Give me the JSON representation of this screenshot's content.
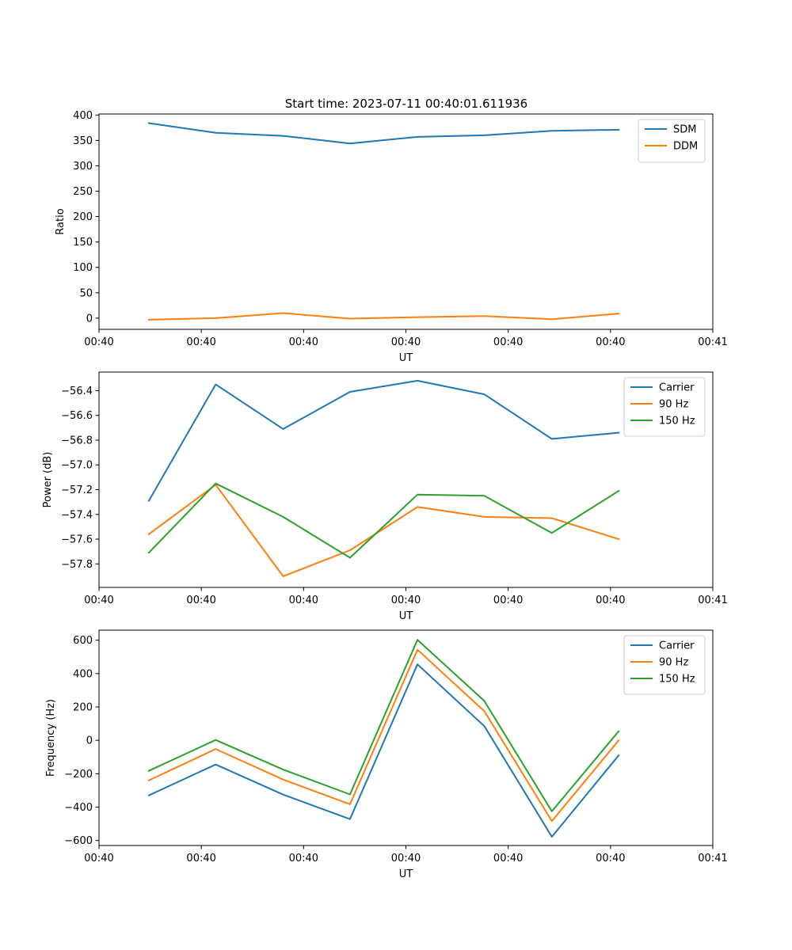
{
  "figure_title": "Start time: 2023-07-11 00:40:01.611936",
  "chart_data": [
    {
      "type": "line",
      "title": "Start time: 2023-07-11 00:40:01.611936",
      "xlabel": "UT",
      "ylabel": "Ratio",
      "xlim": [
        0,
        9
      ],
      "ylim": [
        -22,
        402
      ],
      "x_ticks": [
        0,
        1.5,
        3,
        4.5,
        6,
        7.5,
        9
      ],
      "x_tick_labels": [
        "00:40",
        "00:40",
        "00:40",
        "00:40",
        "00:40",
        "00:40",
        "00:41"
      ],
      "y_ticks": [
        0,
        50,
        100,
        150,
        200,
        250,
        300,
        350,
        400
      ],
      "y_tick_labels": [
        "0",
        "50",
        "100",
        "150",
        "200",
        "250",
        "300",
        "350",
        "400"
      ],
      "legend_position": "top-right",
      "x": [
        0.73,
        1.71,
        2.7,
        3.68,
        4.67,
        5.65,
        6.64,
        7.62
      ],
      "series": [
        {
          "name": "SDM",
          "color": "#1f77b4",
          "values": [
            384,
            365,
            359,
            344,
            357,
            360,
            369,
            371
          ]
        },
        {
          "name": "DDM",
          "color": "#ff7f0e",
          "values": [
            -3,
            0,
            10,
            -1,
            2,
            4,
            -2,
            9
          ]
        }
      ]
    },
    {
      "type": "line",
      "title": "",
      "xlabel": "UT",
      "ylabel": "Power (dB)",
      "xlim": [
        0,
        9
      ],
      "ylim": [
        -57.99,
        -56.25
      ],
      "x_ticks": [
        0,
        1.5,
        3,
        4.5,
        6,
        7.5,
        9
      ],
      "x_tick_labels": [
        "00:40",
        "00:40",
        "00:40",
        "00:40",
        "00:40",
        "00:40",
        "00:41"
      ],
      "y_ticks": [
        -57.8,
        -57.6,
        -57.4,
        -57.2,
        -57.0,
        -56.8,
        -56.6,
        -56.4
      ],
      "y_tick_labels": [
        "−57.8",
        "−57.6",
        "−57.4",
        "−57.2",
        "−57.0",
        "−56.8",
        "−56.6",
        "−56.4"
      ],
      "legend_position": "top-right",
      "x": [
        0.73,
        1.71,
        2.7,
        3.68,
        4.67,
        5.65,
        6.64,
        7.62
      ],
      "series": [
        {
          "name": "Carrier",
          "color": "#1f77b4",
          "values": [
            -57.29,
            -56.35,
            -56.71,
            -56.41,
            -56.32,
            -56.43,
            -56.79,
            -56.74
          ]
        },
        {
          "name": "90 Hz",
          "color": "#ff7f0e",
          "values": [
            -57.56,
            -57.16,
            -57.9,
            -57.69,
            -57.34,
            -57.42,
            -57.43,
            -57.6
          ]
        },
        {
          "name": "150 Hz",
          "color": "#2ca02c",
          "values": [
            -57.71,
            -57.15,
            -57.42,
            -57.75,
            -57.24,
            -57.25,
            -57.55,
            -57.21
          ]
        }
      ]
    },
    {
      "type": "line",
      "title": "",
      "xlabel": "UT",
      "ylabel": "Frequency (Hz)",
      "xlim": [
        0,
        9
      ],
      "ylim": [
        -630,
        660
      ],
      "x_ticks": [
        0,
        1.5,
        3,
        4.5,
        6,
        7.5,
        9
      ],
      "x_tick_labels": [
        "00:40",
        "00:40",
        "00:40",
        "00:40",
        "00:40",
        "00:40",
        "00:41"
      ],
      "y_ticks": [
        -600,
        -400,
        -200,
        0,
        200,
        400,
        600
      ],
      "y_tick_labels": [
        "−600",
        "−400",
        "−200",
        "0",
        "200",
        "400",
        "600"
      ],
      "legend_position": "top-right",
      "x": [
        0.73,
        1.71,
        2.7,
        3.68,
        4.67,
        5.65,
        6.64,
        7.62
      ],
      "series": [
        {
          "name": "Carrier",
          "color": "#1f77b4",
          "values": [
            -330,
            -145,
            -325,
            -472,
            455,
            85,
            -578,
            -90
          ]
        },
        {
          "name": "90 Hz",
          "color": "#ff7f0e",
          "values": [
            -240,
            -52,
            -235,
            -383,
            543,
            175,
            -484,
            0
          ]
        },
        {
          "name": "150 Hz",
          "color": "#2ca02c",
          "values": [
            -183,
            2,
            -175,
            -324,
            602,
            236,
            -425,
            55
          ]
        }
      ]
    }
  ]
}
